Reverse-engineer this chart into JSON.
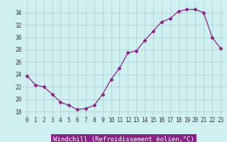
{
  "x": [
    0,
    1,
    2,
    3,
    4,
    5,
    6,
    7,
    8,
    9,
    10,
    11,
    12,
    13,
    14,
    15,
    16,
    17,
    18,
    19,
    20,
    21,
    22,
    23
  ],
  "y": [
    23.8,
    22.3,
    22.0,
    20.8,
    19.5,
    19.0,
    18.3,
    18.5,
    19.0,
    20.8,
    23.2,
    25.0,
    27.5,
    27.8,
    29.5,
    31.0,
    32.5,
    33.0,
    34.2,
    34.5,
    34.5,
    34.0,
    30.0,
    28.2
  ],
  "line_color": "#882288",
  "marker": "D",
  "marker_size": 2.5,
  "bg_color": "#cff0f0",
  "grid_color": "#b0c8c8",
  "xlabel": "Windchill (Refroidissement éolien,°C)",
  "xlabel_bg": "#882288",
  "xlabel_fontsize": 6.5,
  "tick_fontsize": 5.5,
  "ylabel_ticks": [
    18,
    20,
    22,
    24,
    26,
    28,
    30,
    32,
    34
  ],
  "xlim": [
    -0.5,
    23.5
  ],
  "ylim": [
    17.2,
    35.8
  ],
  "xtick_labels": [
    "0",
    "1",
    "2",
    "3",
    "4",
    "5",
    "6",
    "7",
    "8",
    "9",
    "10",
    "11",
    "12",
    "13",
    "14",
    "15",
    "16",
    "17",
    "18",
    "19",
    "20",
    "21",
    "22",
    "23"
  ]
}
